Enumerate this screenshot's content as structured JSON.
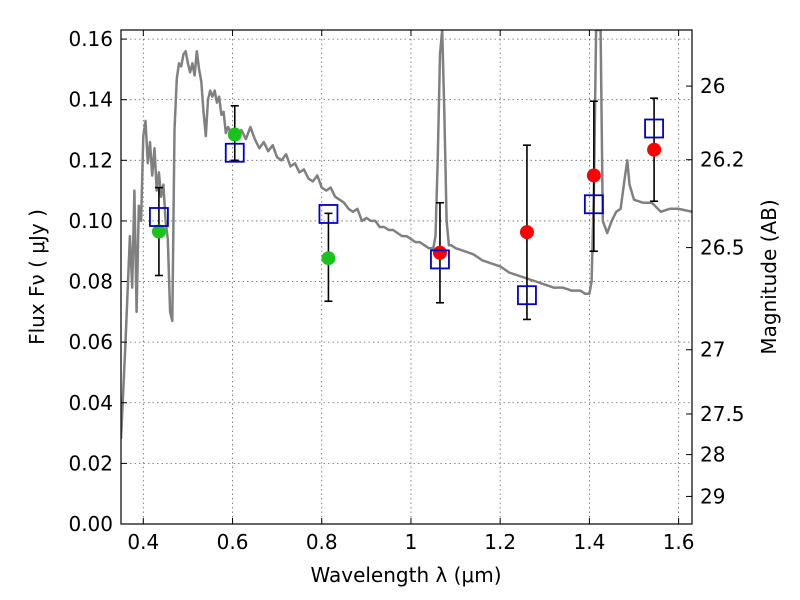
{
  "chart_data": {
    "type": "scatter",
    "title": "",
    "xlabel": "Wavelength  λ (μm)",
    "ylabel": "Flux  Fν  ( μJy )",
    "ylabel_right": "Magnitude (AB)",
    "xlim": [
      0.35,
      1.63
    ],
    "ylim": [
      0.0,
      0.163
    ],
    "grid": true,
    "x_ticks": [
      0.4,
      0.6,
      0.8,
      1.0,
      1.2,
      1.4,
      1.6
    ],
    "x_tick_labels": [
      "0.4",
      "0.6",
      "0.8",
      "1",
      "1.2",
      "1.4",
      "1.6"
    ],
    "y_ticks": [
      0.0,
      0.02,
      0.04,
      0.06,
      0.08,
      0.1,
      0.12,
      0.14,
      0.16
    ],
    "y_tick_labels": [
      "0.00",
      "0.02",
      "0.04",
      "0.06",
      "0.08",
      "0.10",
      "0.12",
      "0.14",
      "0.16"
    ],
    "right_ticks": [
      {
        "label": "26",
        "flux": 0.1445
      },
      {
        "label": "26.2",
        "flux": 0.1202
      },
      {
        "label": "26.5",
        "flux": 0.0912
      },
      {
        "label": "27",
        "flux": 0.0575
      },
      {
        "label": "27.5",
        "flux": 0.0363
      },
      {
        "label": "28",
        "flux": 0.0229
      },
      {
        "label": "29",
        "flux": 0.0091
      }
    ],
    "colors": {
      "template": "#808080",
      "green": "#1cc21c",
      "red": "#ff0000",
      "box": "#0000cc",
      "errorbar": "#000000"
    },
    "series": [
      {
        "name": "template",
        "kind": "line",
        "points": [
          [
            0.35,
            0.028
          ],
          [
            0.36,
            0.06
          ],
          [
            0.37,
            0.095
          ],
          [
            0.375,
            0.078
          ],
          [
            0.38,
            0.11
          ],
          [
            0.385,
            0.07
          ],
          [
            0.39,
            0.105
          ],
          [
            0.395,
            0.1
          ],
          [
            0.4,
            0.128
          ],
          [
            0.405,
            0.133
          ],
          [
            0.41,
            0.119
          ],
          [
            0.415,
            0.126
          ],
          [
            0.42,
            0.115
          ],
          [
            0.425,
            0.124
          ],
          [
            0.43,
            0.11
          ],
          [
            0.435,
            0.116
          ],
          [
            0.44,
            0.108
          ],
          [
            0.445,
            0.112
          ],
          [
            0.45,
            0.1
          ],
          [
            0.455,
            0.094
          ],
          [
            0.46,
            0.07
          ],
          [
            0.465,
            0.067
          ],
          [
            0.47,
            0.13
          ],
          [
            0.475,
            0.147
          ],
          [
            0.48,
            0.152
          ],
          [
            0.485,
            0.151
          ],
          [
            0.49,
            0.155
          ],
          [
            0.495,
            0.156
          ],
          [
            0.5,
            0.152
          ],
          [
            0.505,
            0.149
          ],
          [
            0.51,
            0.152
          ],
          [
            0.515,
            0.148
          ],
          [
            0.52,
            0.156
          ],
          [
            0.525,
            0.15
          ],
          [
            0.53,
            0.146
          ],
          [
            0.535,
            0.136
          ],
          [
            0.54,
            0.128
          ],
          [
            0.545,
            0.14
          ],
          [
            0.55,
            0.143
          ],
          [
            0.555,
            0.141
          ],
          [
            0.56,
            0.143
          ],
          [
            0.565,
            0.139
          ],
          [
            0.57,
            0.141
          ],
          [
            0.575,
            0.135
          ],
          [
            0.58,
            0.136
          ],
          [
            0.585,
            0.129
          ],
          [
            0.59,
            0.131
          ],
          [
            0.6,
            0.128
          ],
          [
            0.61,
            0.127
          ],
          [
            0.62,
            0.13
          ],
          [
            0.63,
            0.127
          ],
          [
            0.64,
            0.131
          ],
          [
            0.65,
            0.127
          ],
          [
            0.66,
            0.124
          ],
          [
            0.67,
            0.126
          ],
          [
            0.68,
            0.123
          ],
          [
            0.69,
            0.125
          ],
          [
            0.7,
            0.121
          ],
          [
            0.71,
            0.12
          ],
          [
            0.72,
            0.122
          ],
          [
            0.73,
            0.118
          ],
          [
            0.74,
            0.119
          ],
          [
            0.75,
            0.116
          ],
          [
            0.76,
            0.117
          ],
          [
            0.77,
            0.114
          ],
          [
            0.78,
            0.113
          ],
          [
            0.79,
            0.115
          ],
          [
            0.8,
            0.111
          ],
          [
            0.81,
            0.11
          ],
          [
            0.82,
            0.111
          ],
          [
            0.83,
            0.108
          ],
          [
            0.84,
            0.107
          ],
          [
            0.85,
            0.106
          ],
          [
            0.86,
            0.104
          ],
          [
            0.87,
            0.103
          ],
          [
            0.88,
            0.104
          ],
          [
            0.89,
            0.1
          ],
          [
            0.9,
            0.101
          ],
          [
            0.91,
            0.1
          ],
          [
            0.92,
            0.1
          ],
          [
            0.93,
            0.098
          ],
          [
            0.94,
            0.098
          ],
          [
            0.95,
            0.097
          ],
          [
            0.96,
            0.097
          ],
          [
            0.97,
            0.096
          ],
          [
            0.98,
            0.095
          ],
          [
            0.99,
            0.095
          ],
          [
            1.0,
            0.094
          ],
          [
            1.01,
            0.093
          ],
          [
            1.02,
            0.093
          ],
          [
            1.03,
            0.092
          ],
          [
            1.04,
            0.091
          ],
          [
            1.05,
            0.091
          ],
          [
            1.055,
            0.095
          ],
          [
            1.06,
            0.12
          ],
          [
            1.065,
            0.155
          ],
          [
            1.07,
            0.163
          ],
          [
            1.075,
            0.135
          ],
          [
            1.08,
            0.1
          ],
          [
            1.085,
            0.092
          ],
          [
            1.09,
            0.092
          ],
          [
            1.1,
            0.091
          ],
          [
            1.12,
            0.09
          ],
          [
            1.14,
            0.089
          ],
          [
            1.16,
            0.087
          ],
          [
            1.18,
            0.086
          ],
          [
            1.2,
            0.085
          ],
          [
            1.22,
            0.083
          ],
          [
            1.24,
            0.082
          ],
          [
            1.26,
            0.081
          ],
          [
            1.28,
            0.08
          ],
          [
            1.3,
            0.079
          ],
          [
            1.32,
            0.078
          ],
          [
            1.34,
            0.078
          ],
          [
            1.36,
            0.077
          ],
          [
            1.38,
            0.077
          ],
          [
            1.39,
            0.076
          ],
          [
            1.4,
            0.076
          ],
          [
            1.405,
            0.08
          ],
          [
            1.41,
            0.11
          ],
          [
            1.415,
            0.163
          ],
          [
            1.425,
            0.163
          ],
          [
            1.43,
            0.1
          ],
          [
            1.44,
            0.096
          ],
          [
            1.45,
            0.1
          ],
          [
            1.46,
            0.103
          ],
          [
            1.47,
            0.104
          ],
          [
            1.48,
            0.115
          ],
          [
            1.485,
            0.12
          ],
          [
            1.49,
            0.112
          ],
          [
            1.5,
            0.107
          ],
          [
            1.52,
            0.106
          ],
          [
            1.54,
            0.106
          ],
          [
            1.56,
            0.103
          ],
          [
            1.58,
            0.104
          ],
          [
            1.6,
            0.104
          ],
          [
            1.63,
            0.103
          ]
        ]
      },
      {
        "name": "green circles",
        "kind": "marker-circle",
        "color_key": "green",
        "points": [
          [
            0.435,
            0.0965
          ],
          [
            0.605,
            0.1285
          ],
          [
            0.815,
            0.0877
          ]
        ]
      },
      {
        "name": "red circles",
        "kind": "marker-circle",
        "color_key": "red",
        "points": [
          [
            1.065,
            0.0895
          ],
          [
            1.26,
            0.0963
          ],
          [
            1.41,
            0.115
          ],
          [
            1.545,
            0.1235
          ]
        ]
      },
      {
        "name": "open squares",
        "kind": "marker-square",
        "color_key": "box",
        "points": [
          [
            0.435,
            0.1013
          ],
          [
            0.605,
            0.1225
          ],
          [
            0.815,
            0.1023
          ],
          [
            1.065,
            0.0873
          ],
          [
            1.26,
            0.0755
          ],
          [
            1.41,
            0.1055
          ],
          [
            1.545,
            0.1305
          ]
        ]
      },
      {
        "name": "error bars",
        "kind": "errorbar",
        "color_key": "errorbar",
        "bars": [
          {
            "x": 0.435,
            "low": 0.082,
            "high": 0.111
          },
          {
            "x": 0.605,
            "low": 0.12,
            "high": 0.138
          },
          {
            "x": 0.815,
            "low": 0.0735,
            "high": 0.1025
          },
          {
            "x": 1.065,
            "low": 0.073,
            "high": 0.106
          },
          {
            "x": 1.26,
            "low": 0.0675,
            "high": 0.125
          },
          {
            "x": 1.41,
            "low": 0.09,
            "high": 0.1395
          },
          {
            "x": 1.545,
            "low": 0.1065,
            "high": 0.1405
          }
        ]
      }
    ]
  }
}
